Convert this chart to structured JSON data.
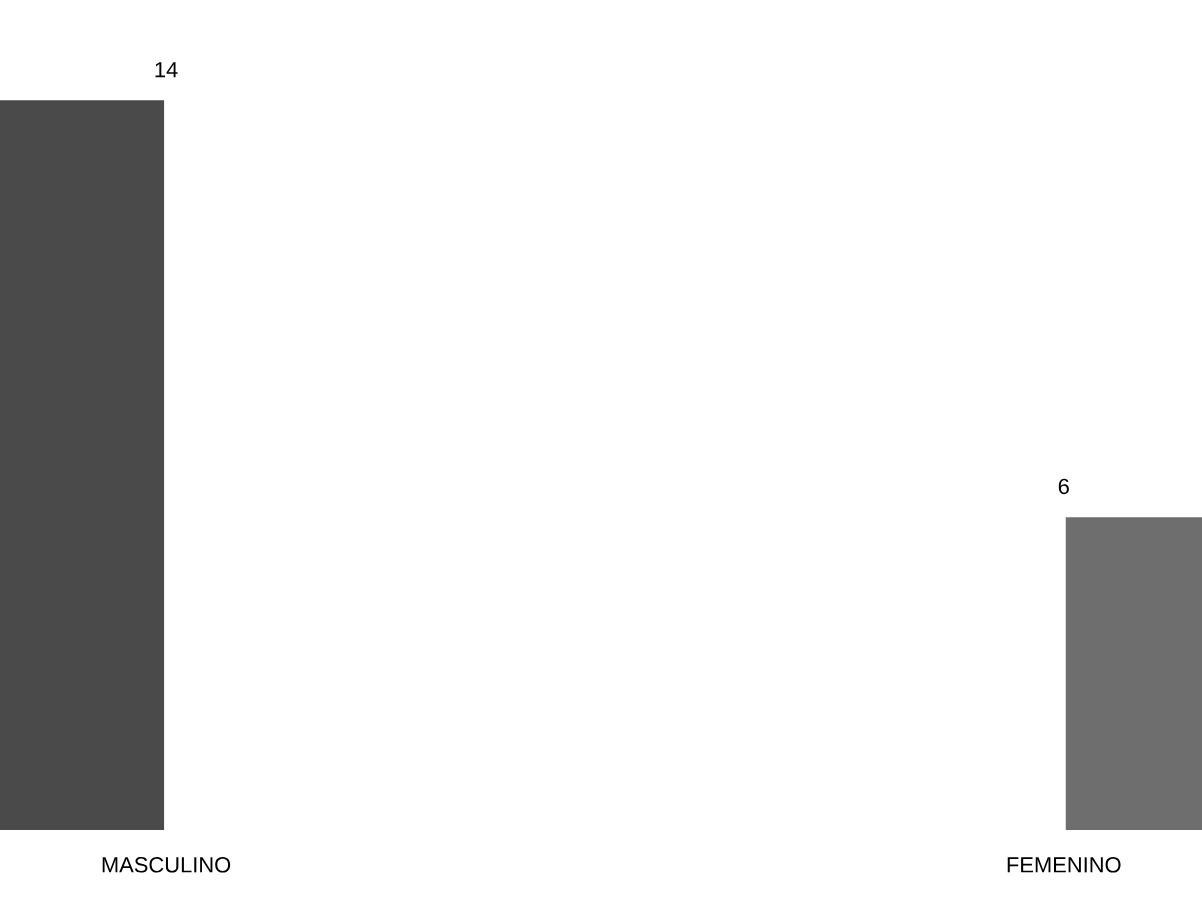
{
  "chart_data": {
    "type": "bar",
    "categories": [
      "MASCULINO",
      "FEMENINO"
    ],
    "values": [
      14,
      6
    ],
    "colors": [
      "#4a4a4a",
      "#6e6e6e"
    ],
    "data_labels": true
  }
}
